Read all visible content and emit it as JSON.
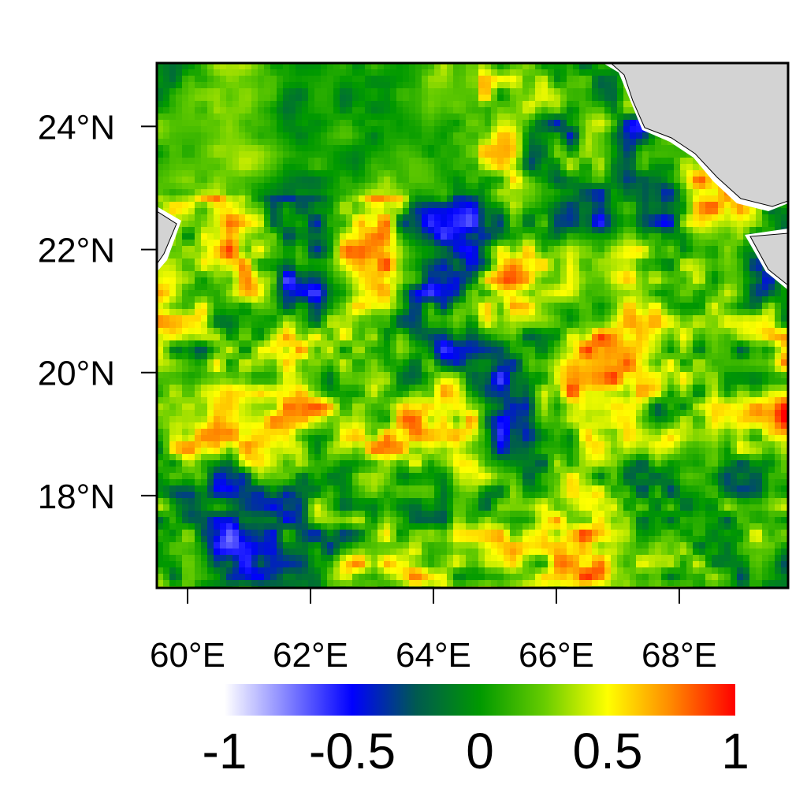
{
  "chart_data": {
    "type": "map",
    "xlim": [
      59.5,
      69.77
    ],
    "ylim": [
      16.5,
      25.03
    ],
    "xticks": [
      {
        "value": 60,
        "label": "60°E"
      },
      {
        "value": 62,
        "label": "62°E"
      },
      {
        "value": 64,
        "label": "64°E"
      },
      {
        "value": 66,
        "label": "66°E"
      },
      {
        "value": 68,
        "label": "68°E"
      }
    ],
    "yticks": [
      {
        "value": 18,
        "label": "18°N"
      },
      {
        "value": 20,
        "label": "20°N"
      },
      {
        "value": 22,
        "label": "22°N"
      },
      {
        "value": 24,
        "label": "24°N"
      }
    ],
    "colorbar": {
      "lim": [
        -1,
        1
      ],
      "ticks": [
        -1,
        -0.5,
        0,
        0.5,
        1
      ],
      "colors": [
        "#ffffff",
        "#8080ff",
        "#0000ff",
        "#005a50",
        "#009900",
        "#66cc00",
        "#ffff00",
        "#ff8800",
        "#ff0000"
      ]
    }
  }
}
